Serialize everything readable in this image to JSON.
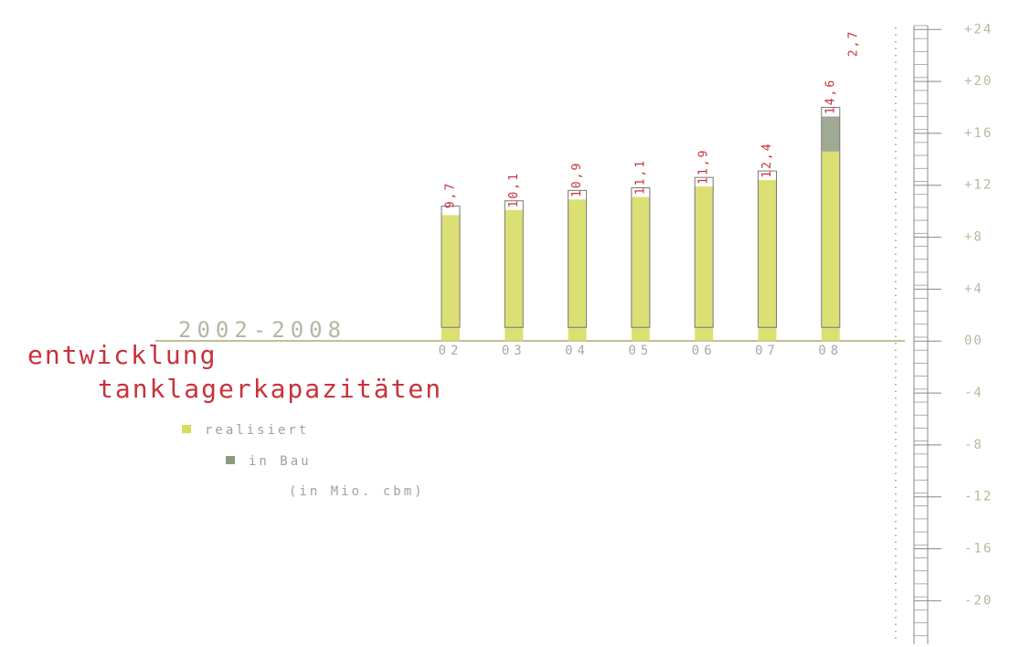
{
  "chart_data": {
    "type": "bar",
    "stacked": true,
    "title_lines": [
      "entwicklung",
      "tanklagerkapazitäten"
    ],
    "subtitle": "2002-2008",
    "unit_note": "(in Mio. cbm)",
    "categories": [
      "02",
      "03",
      "04",
      "05",
      "06",
      "07",
      "08"
    ],
    "series": [
      {
        "name": "realisiert",
        "color": "#d6db5c",
        "values": [
          9.7,
          10.1,
          10.9,
          11.1,
          11.9,
          12.4,
          14.6
        ],
        "value_labels": [
          "9,7",
          "10,1",
          "10,9",
          "11,1",
          "11,9",
          "12,4",
          "14,6"
        ]
      },
      {
        "name": "in Bau",
        "color": "#8e9a80",
        "values": [
          null,
          null,
          null,
          null,
          null,
          null,
          2.7
        ],
        "value_labels": [
          null,
          null,
          null,
          null,
          null,
          null,
          "2,7"
        ]
      }
    ],
    "ylim": [
      -23,
      24.3
    ],
    "yticks": [
      {
        "value": 24,
        "label": "+24"
      },
      {
        "value": 20,
        "label": "+20"
      },
      {
        "value": 16,
        "label": "+16"
      },
      {
        "value": 12,
        "label": "+12"
      },
      {
        "value": 8,
        "label": "+8"
      },
      {
        "value": 4,
        "label": "+4"
      },
      {
        "value": 0,
        "label": "00"
      },
      -4,
      -8,
      -12,
      -16,
      -20
    ]
  }
}
